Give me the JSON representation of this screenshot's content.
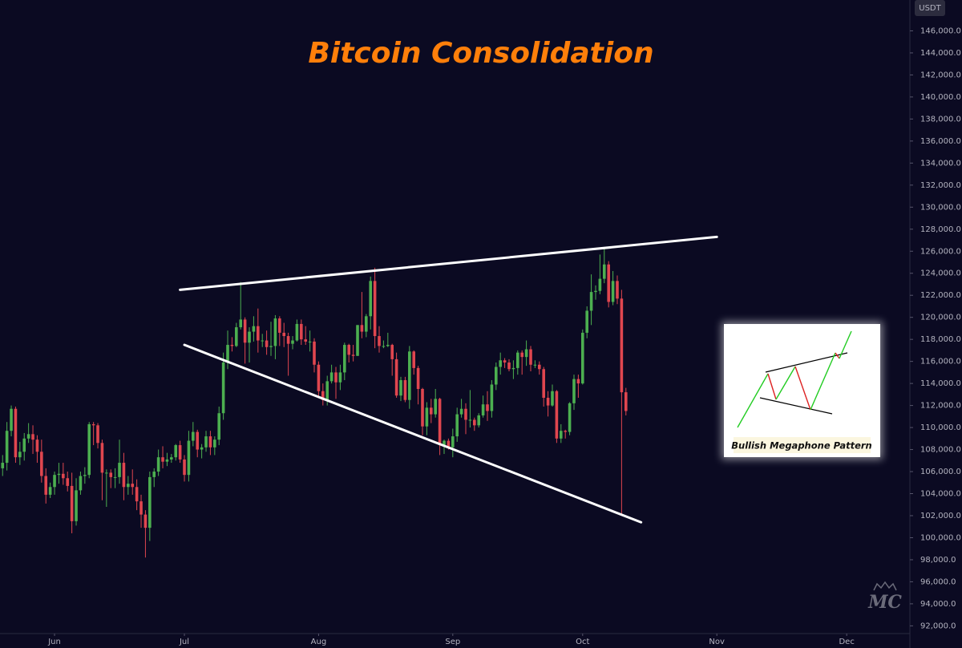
{
  "chart_data": {
    "type": "candlestick",
    "title": "Bitcoin Consolidation",
    "currency": "USDT",
    "annotation": "Bullish Megaphone Pattern",
    "watermark": "MC",
    "up_color": "#4caf50",
    "down_color": "#e0464f",
    "grid": false,
    "xlim": [
      -12.6,
      197.6
    ],
    "xticks": [
      {
        "value": 0,
        "label": "Jun"
      },
      {
        "value": 30,
        "label": "Jul"
      },
      {
        "value": 61,
        "label": "Aug"
      },
      {
        "value": 92,
        "label": "Sep"
      },
      {
        "value": 122,
        "label": "Oct"
      },
      {
        "value": 153,
        "label": "Nov"
      },
      {
        "value": 183,
        "label": "Dec"
      }
    ],
    "ylim": [
      91300,
      148800
    ],
    "yticks": [
      {
        "value": 92000,
        "label": "92,000.0"
      },
      {
        "value": 94000,
        "label": "94,000.0"
      },
      {
        "value": 96000,
        "label": "96,000.0"
      },
      {
        "value": 98000,
        "label": "98,000.0"
      },
      {
        "value": 100000,
        "label": "100,000.0"
      },
      {
        "value": 102000,
        "label": "102,000.0"
      },
      {
        "value": 104000,
        "label": "104,000.0"
      },
      {
        "value": 106000,
        "label": "106,000.0"
      },
      {
        "value": 108000,
        "label": "108,000.0"
      },
      {
        "value": 110000,
        "label": "110,000.0"
      },
      {
        "value": 112000,
        "label": "112,000.0"
      },
      {
        "value": 114000,
        "label": "114,000.0"
      },
      {
        "value": 116000,
        "label": "116,000.0"
      },
      {
        "value": 118000,
        "label": "118,000.0"
      },
      {
        "value": 120000,
        "label": "120,000.0"
      },
      {
        "value": 122000,
        "label": "122,000.0"
      },
      {
        "value": 124000,
        "label": "124,000.0"
      },
      {
        "value": 126000,
        "label": "126,000.0"
      },
      {
        "value": 128000,
        "label": "128,000.0"
      },
      {
        "value": 130000,
        "label": "130,000.0"
      },
      {
        "value": 132000,
        "label": "132,000.0"
      },
      {
        "value": 134000,
        "label": "134,000.0"
      },
      {
        "value": 136000,
        "label": "136,000.0"
      },
      {
        "value": 138000,
        "label": "138,000.0"
      },
      {
        "value": 140000,
        "label": "140,000.0"
      },
      {
        "value": 142000,
        "label": "142,000.0"
      },
      {
        "value": 144000,
        "label": "144,000.0"
      },
      {
        "value": 146000,
        "label": "146,000.0"
      }
    ],
    "x": [
      -12,
      -11,
      -10,
      -9,
      -8,
      -7,
      -6,
      -5,
      -4,
      -3,
      -2,
      -1,
      0,
      1,
      2,
      3,
      4,
      5,
      6,
      7,
      8,
      9,
      10,
      11,
      12,
      13,
      14,
      15,
      16,
      17,
      18,
      19,
      20,
      21,
      22,
      23,
      24,
      25,
      26,
      27,
      28,
      29,
      30,
      31,
      32,
      33,
      34,
      35,
      36,
      37,
      38,
      39,
      40,
      41,
      42,
      43,
      44,
      45,
      46,
      47,
      48,
      49,
      50,
      51,
      52,
      53,
      54,
      55,
      56,
      57,
      58,
      59,
      60,
      61,
      62,
      63,
      64,
      65,
      66,
      67,
      68,
      69,
      70,
      71,
      72,
      73,
      74,
      75,
      76,
      77,
      78,
      79,
      80,
      81,
      82,
      83,
      84,
      85,
      86,
      87,
      88,
      89,
      90,
      91,
      92,
      93,
      94,
      95,
      96,
      97,
      98,
      99,
      100,
      101,
      102,
      103,
      104,
      105,
      106,
      107,
      108,
      109,
      110,
      111,
      112,
      113,
      114,
      115,
      116,
      117,
      118,
      119,
      120,
      121,
      122,
      123,
      124,
      125,
      126,
      127,
      128,
      129,
      130,
      131,
      132
    ],
    "open": [
      106300,
      106800,
      109700,
      111700,
      107300,
      107800,
      109000,
      109400,
      108900,
      107800,
      105600,
      103900,
      104600,
      105700,
      105800,
      105400,
      104700,
      101500,
      104300,
      105600,
      105700,
      110300,
      110200,
      108600,
      105900,
      105900,
      105500,
      105500,
      106800,
      104600,
      104900,
      104600,
      103300,
      102100,
      100900,
      105500,
      106000,
      107300,
      106900,
      107100,
      107300,
      108400,
      107100,
      105700,
      108800,
      109600,
      108000,
      108200,
      109200,
      108200,
      108900,
      111300,
      115900,
      117500,
      117400,
      119100,
      119800,
      117700,
      118700,
      119200,
      117900,
      117900,
      117300,
      117400,
      119900,
      118600,
      118300,
      117600,
      117900,
      119400,
      118000,
      117800,
      117800,
      115700,
      113300,
      112500,
      114200,
      115000,
      114100,
      115000,
      117500,
      116600,
      116500,
      119300,
      118700,
      120100,
      123300,
      118300,
      117400,
      117400,
      117500,
      116200,
      112900,
      114300,
      112500,
      116900,
      115400,
      113500,
      110100,
      111800,
      111200,
      112600,
      108400,
      108800,
      108200,
      109200,
      111200,
      111700,
      110700,
      110700,
      110200,
      111100,
      112100,
      111500,
      113900,
      115500,
      116100,
      115900,
      115300,
      115400,
      116800,
      116400,
      117100,
      115700,
      115700,
      115300,
      112700,
      112000,
      113300,
      109000,
      109700,
      109600,
      112200,
      114400,
      114000,
      118600,
      120600,
      122300,
      122400,
      123500,
      124800,
      121400,
      123300,
      121700,
      113200
    ],
    "high": [
      107500,
      110500,
      112000,
      111900,
      108700,
      109500,
      110400,
      110200,
      109300,
      108900,
      106300,
      105000,
      106000,
      106800,
      106800,
      106000,
      105900,
      105400,
      106000,
      106400,
      110500,
      110500,
      110400,
      108900,
      106200,
      106200,
      106300,
      108900,
      107700,
      105600,
      106200,
      105300,
      103900,
      102500,
      106000,
      106300,
      108000,
      108300,
      107700,
      107600,
      108500,
      108800,
      107500,
      109700,
      110500,
      109800,
      108500,
      109700,
      109700,
      109200,
      111900,
      116800,
      118800,
      118200,
      119500,
      123200,
      120000,
      119100,
      120100,
      120800,
      118500,
      118800,
      119600,
      120200,
      120100,
      119500,
      118600,
      118300,
      119800,
      119800,
      119200,
      118800,
      118100,
      116000,
      114000,
      114700,
      115700,
      115500,
      115700,
      117700,
      117600,
      117500,
      119300,
      122300,
      120300,
      123700,
      124500,
      119200,
      117900,
      118600,
      117600,
      116800,
      114600,
      114600,
      117400,
      117000,
      115600,
      113600,
      112300,
      112600,
      113500,
      112700,
      108900,
      109000,
      109900,
      111800,
      112600,
      112200,
      113400,
      110900,
      111300,
      112900,
      113300,
      114300,
      115900,
      116800,
      116300,
      116200,
      116100,
      117000,
      117000,
      117900,
      117400,
      116100,
      116000,
      115500,
      113300,
      113900,
      113400,
      110300,
      109800,
      112300,
      114800,
      114800,
      118900,
      121000,
      123900,
      122900,
      125700,
      126200,
      125100,
      124200,
      123800,
      122500,
      113600
    ],
    "low": [
      105600,
      106100,
      109200,
      106800,
      106600,
      107000,
      108600,
      107600,
      106800,
      105000,
      103100,
      103600,
      103900,
      104900,
      104800,
      104200,
      100400,
      101100,
      103900,
      104900,
      105400,
      108400,
      108100,
      103400,
      102800,
      104500,
      104500,
      104900,
      103400,
      103900,
      103900,
      102500,
      100900,
      98200,
      99700,
      104600,
      105600,
      106300,
      106500,
      106800,
      107000,
      106800,
      105100,
      105100,
      108300,
      107300,
      107200,
      107800,
      107500,
      107500,
      108400,
      110700,
      115300,
      116900,
      117300,
      118900,
      115800,
      115900,
      117800,
      116800,
      117300,
      116600,
      116500,
      116200,
      117400,
      117300,
      114700,
      117100,
      117800,
      117500,
      117500,
      116900,
      115000,
      112700,
      112000,
      112000,
      114000,
      112600,
      113400,
      114300,
      115900,
      116000,
      116500,
      118100,
      118200,
      118900,
      117200,
      116800,
      117200,
      117300,
      114700,
      112700,
      112400,
      112300,
      111700,
      114800,
      112100,
      109300,
      109300,
      110400,
      110900,
      107500,
      107600,
      108000,
      107300,
      108700,
      110900,
      109400,
      110000,
      109700,
      110000,
      110900,
      110600,
      110900,
      113400,
      114800,
      115400,
      115100,
      114400,
      114800,
      114800,
      115600,
      115100,
      115400,
      114800,
      111900,
      111000,
      111900,
      108600,
      108600,
      109000,
      109300,
      111600,
      112700,
      113900,
      118100,
      119300,
      121600,
      122100,
      123100,
      120900,
      121100,
      121200,
      102000,
      111100
    ],
    "close": [
      106800,
      109700,
      111700,
      107300,
      107800,
      109000,
      109400,
      108900,
      107800,
      105600,
      103900,
      104600,
      105700,
      105800,
      105400,
      104700,
      101500,
      104300,
      105600,
      105700,
      110300,
      110200,
      108600,
      105900,
      105900,
      105500,
      105500,
      106800,
      104600,
      104900,
      104600,
      103300,
      102100,
      100900,
      105500,
      106000,
      107300,
      106900,
      107100,
      107300,
      108400,
      107100,
      105700,
      108800,
      109600,
      108000,
      108200,
      109200,
      108200,
      108900,
      111300,
      115900,
      117500,
      117400,
      119100,
      119800,
      117700,
      118700,
      119200,
      117900,
      117900,
      117300,
      117400,
      119900,
      118600,
      118300,
      117600,
      117900,
      119400,
      118000,
      117800,
      117800,
      115700,
      113300,
      112500,
      114200,
      115000,
      114100,
      115000,
      117500,
      116600,
      116500,
      119300,
      118700,
      120100,
      123300,
      118300,
      117400,
      117400,
      117500,
      116200,
      112900,
      114300,
      112500,
      116900,
      115400,
      113500,
      110100,
      111800,
      111200,
      112600,
      108400,
      108800,
      108200,
      109200,
      111200,
      111700,
      110700,
      110700,
      110200,
      111100,
      112100,
      111500,
      113900,
      115500,
      116100,
      115900,
      115300,
      115400,
      116800,
      116400,
      117100,
      115700,
      115700,
      115300,
      112700,
      112000,
      113300,
      109000,
      109700,
      109600,
      112200,
      114400,
      114000,
      118600,
      120600,
      122300,
      122400,
      123500,
      124800,
      121400,
      123300,
      121700,
      113200,
      111500
    ],
    "trendlines": [
      {
        "color": "#ffffff",
        "x": [
          29,
          153
        ],
        "y": [
          122500,
          127300
        ]
      },
      {
        "color": "#ffffff",
        "x": [
          30,
          135.5
        ],
        "y": [
          117500,
          101400
        ]
      }
    ]
  }
}
